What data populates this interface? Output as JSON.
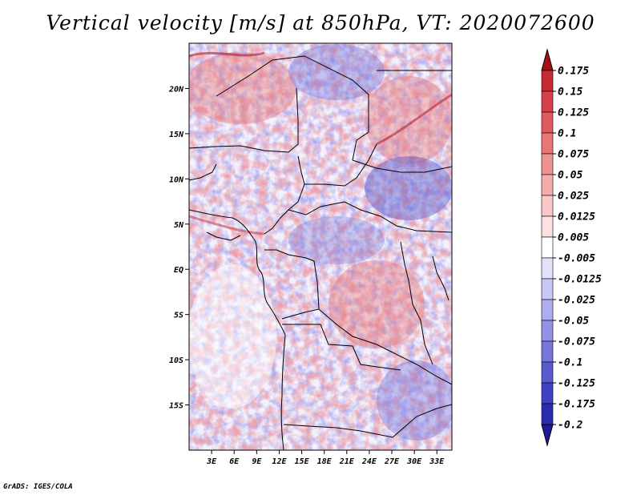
{
  "title": "Vertical velocity [m/s] at 850hPa, VT: 2020072600",
  "credit": "GrADS: IGES/COLA",
  "map": {
    "lon_range": [
      0,
      35
    ],
    "lat_range": [
      -20,
      25
    ],
    "y_ticks": [
      {
        "lat": 20,
        "label": "20N"
      },
      {
        "lat": 15,
        "label": "15N"
      },
      {
        "lat": 10,
        "label": "10N"
      },
      {
        "lat": 5,
        "label": "5N"
      },
      {
        "lat": 0,
        "label": "EQ"
      },
      {
        "lat": -5,
        "label": "5S"
      },
      {
        "lat": -10,
        "label": "10S"
      },
      {
        "lat": -15,
        "label": "15S"
      }
    ],
    "x_ticks": [
      {
        "lon": 3,
        "label": "3E"
      },
      {
        "lon": 6,
        "label": "6E"
      },
      {
        "lon": 9,
        "label": "9E"
      },
      {
        "lon": 12,
        "label": "12E"
      },
      {
        "lon": 15,
        "label": "15E"
      },
      {
        "lon": 18,
        "label": "18E"
      },
      {
        "lon": 21,
        "label": "21E"
      },
      {
        "lon": 24,
        "label": "24E"
      },
      {
        "lon": 27,
        "label": "27E"
      },
      {
        "lon": 30,
        "label": "30E"
      },
      {
        "lon": 33,
        "label": "33E"
      }
    ]
  },
  "colorbar": {
    "levels": [
      {
        "label": "0.175",
        "color": "#b2182b"
      },
      {
        "label": "0.15",
        "color": "#c62b33"
      },
      {
        "label": "0.125",
        "color": "#d6404a"
      },
      {
        "label": "0.1",
        "color": "#e05a5e"
      },
      {
        "label": "0.075",
        "color": "#e87676"
      },
      {
        "label": "0.05",
        "color": "#ef9292"
      },
      {
        "label": "0.025",
        "color": "#f4adad"
      },
      {
        "label": "0.0125",
        "color": "#f8c8c8"
      },
      {
        "label": "0.005",
        "color": "#fbe2e2"
      },
      {
        "label": "-0.005",
        "color": "#ffffff"
      },
      {
        "label": "-0.0125",
        "color": "#e2e2fb"
      },
      {
        "label": "-0.025",
        "color": "#c8c8f6"
      },
      {
        "label": "-0.05",
        "color": "#adadf0"
      },
      {
        "label": "-0.075",
        "color": "#9292e8"
      },
      {
        "label": "-0.1",
        "color": "#7676dd"
      },
      {
        "label": "-0.125",
        "color": "#5a5ad0"
      },
      {
        "label": "-0.175",
        "color": "#4040c2"
      },
      {
        "label": "-0.2",
        "color": "#2b2bb0"
      }
    ],
    "top_arrow_color": "#a50f15",
    "bottom_arrow_color": "#1c1c96"
  }
}
